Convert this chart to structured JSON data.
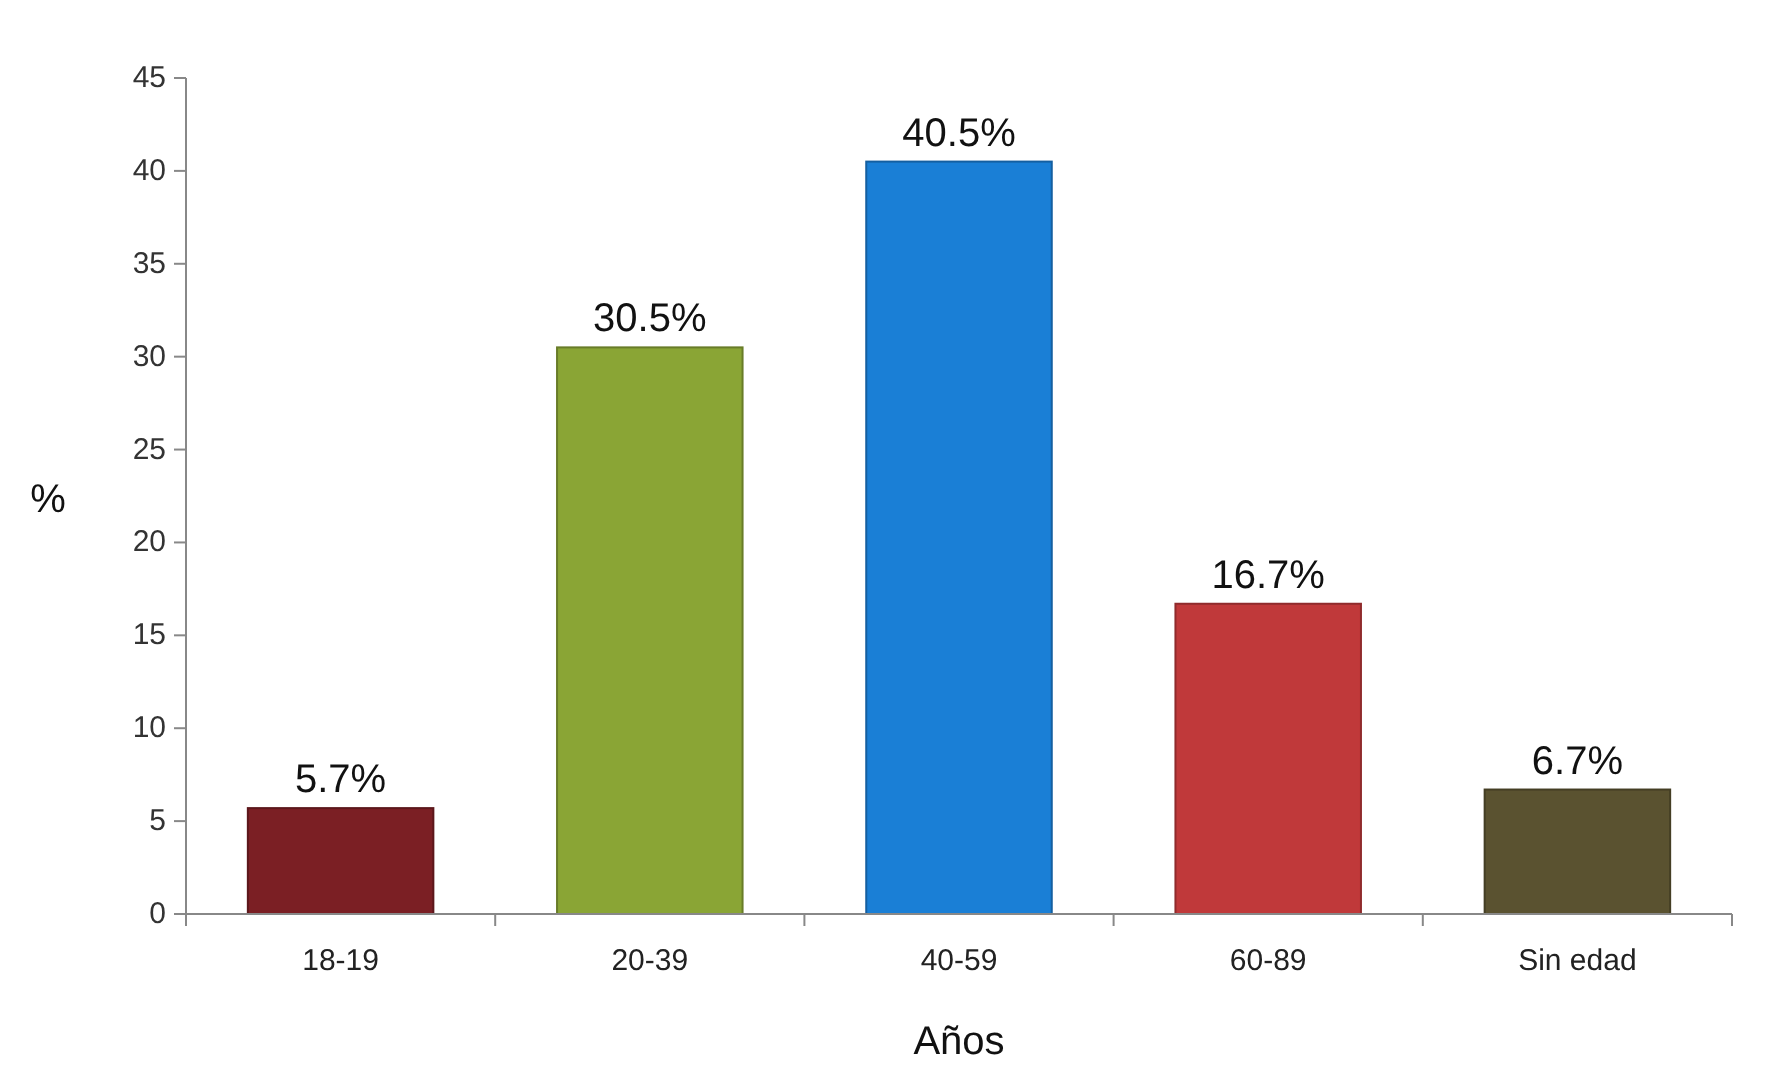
{
  "chart_data": {
    "type": "bar",
    "xlabel": "Años",
    "ylabel": "%",
    "categories": [
      "18-19",
      "20-39",
      "40-59",
      "60-89",
      "Sin edad"
    ],
    "values": [
      5.7,
      30.5,
      40.5,
      16.7,
      6.7
    ],
    "colors": [
      "#7b1f24",
      "#8aa535",
      "#1a7fd6",
      "#c0393a",
      "#5a5230"
    ],
    "value_labels": [
      "5.7%",
      "30.5%",
      "40.5%",
      "16.7%",
      "6.7%"
    ],
    "ylim": [
      0,
      45
    ],
    "yticks": [
      0,
      5,
      10,
      15,
      20,
      25,
      30,
      35,
      40,
      45
    ],
    "grid": false
  }
}
